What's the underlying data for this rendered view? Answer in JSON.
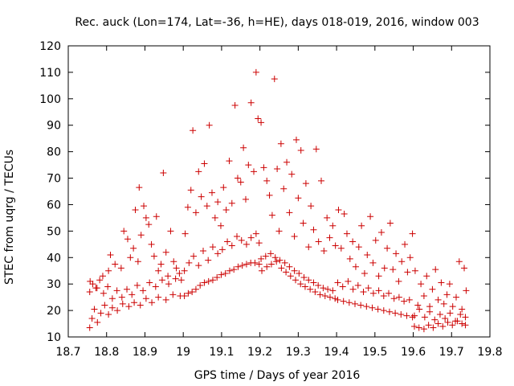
{
  "chart_data": {
    "type": "scatter",
    "title": "Rec. auck (Lon=174, Lat=-36, h=HE), days 018-019, 2016, window 003",
    "xlabel": "GPS time / Days of year 2016",
    "ylabel": "STEC from uqrg / TECUs",
    "xlim": [
      18.7,
      19.8
    ],
    "ylim": [
      10,
      120
    ],
    "xticks": [
      "18.7",
      "18.8",
      "18.9",
      "19",
      "19.1",
      "19.2",
      "19.3",
      "19.4",
      "19.5",
      "19.6",
      "19.7",
      "19.8"
    ],
    "yticks": [
      "10",
      "20",
      "30",
      "40",
      "50",
      "60",
      "70",
      "80",
      "90",
      "100",
      "110",
      "120"
    ],
    "grid": false,
    "legend": "none",
    "marker": "plus",
    "colors": {
      "marker": "#cc0000",
      "frame": "#000000"
    },
    "series": [
      {
        "points": [
          [
            18.756,
            13.5
          ],
          [
            18.762,
            17.0
          ],
          [
            18.768,
            20.5
          ],
          [
            18.776,
            15.5
          ],
          [
            18.785,
            19.0
          ],
          [
            18.795,
            22.0
          ],
          [
            18.805,
            18.5
          ],
          [
            18.815,
            21.0
          ],
          [
            18.828,
            20.0
          ],
          [
            18.842,
            22.5
          ],
          [
            18.858,
            21.5
          ],
          [
            18.872,
            23.0
          ],
          [
            18.888,
            22.0
          ],
          [
            18.903,
            24.5
          ],
          [
            18.918,
            23.0
          ],
          [
            18.935,
            25.0
          ],
          [
            18.955,
            24.0
          ],
          [
            18.973,
            26.0
          ],
          [
            18.992,
            25.5
          ],
          [
            18.756,
            27.0
          ],
          [
            18.764,
            30.0
          ],
          [
            18.772,
            28.5
          ],
          [
            18.782,
            31.5
          ],
          [
            18.792,
            26.5
          ],
          [
            18.803,
            29.0
          ],
          [
            18.815,
            24.5
          ],
          [
            18.827,
            27.5
          ],
          [
            18.84,
            25.0
          ],
          [
            18.853,
            28.0
          ],
          [
            18.866,
            26.0
          ],
          [
            18.88,
            29.5
          ],
          [
            18.895,
            27.5
          ],
          [
            18.912,
            30.5
          ],
          [
            18.928,
            29.0
          ],
          [
            18.945,
            31.5
          ],
          [
            18.962,
            30.0
          ],
          [
            18.98,
            32.0
          ],
          [
            18.995,
            31.5
          ],
          [
            18.757,
            31.0
          ],
          [
            18.775,
            28.5
          ],
          [
            18.79,
            33.0
          ],
          [
            18.805,
            35.0
          ],
          [
            18.81,
            41.0
          ],
          [
            18.822,
            37.5
          ],
          [
            18.838,
            36.0
          ],
          [
            18.845,
            50.0
          ],
          [
            18.855,
            47.0
          ],
          [
            18.862,
            40.0
          ],
          [
            18.87,
            43.5
          ],
          [
            18.875,
            58.0
          ],
          [
            18.882,
            38.5
          ],
          [
            18.885,
            66.5
          ],
          [
            18.89,
            48.5
          ],
          [
            18.897,
            59.5
          ],
          [
            18.903,
            55.0
          ],
          [
            18.91,
            52.5
          ],
          [
            18.917,
            45.0
          ],
          [
            18.924,
            40.5
          ],
          [
            18.93,
            55.5
          ],
          [
            18.935,
            35.0
          ],
          [
            18.942,
            37.5
          ],
          [
            18.948,
            72.0
          ],
          [
            18.955,
            42.0
          ],
          [
            18.96,
            33.0
          ],
          [
            18.967,
            50.0
          ],
          [
            18.975,
            38.5
          ],
          [
            18.982,
            36.0
          ],
          [
            18.99,
            34.0
          ],
          [
            19.003,
            25.5
          ],
          [
            19.013,
            26.5
          ],
          [
            19.023,
            27.0
          ],
          [
            19.033,
            28.0
          ],
          [
            19.044,
            29.5
          ],
          [
            19.055,
            30.5
          ],
          [
            19.066,
            31.0
          ],
          [
            19.077,
            31.5
          ],
          [
            19.088,
            32.5
          ],
          [
            19.099,
            33.5
          ],
          [
            19.11,
            34.0
          ],
          [
            19.121,
            35.0
          ],
          [
            19.132,
            35.5
          ],
          [
            19.143,
            36.5
          ],
          [
            19.154,
            37.0
          ],
          [
            19.165,
            37.5
          ],
          [
            19.176,
            38.0
          ],
          [
            19.187,
            38.0
          ],
          [
            19.198,
            37.5
          ],
          [
            19.003,
            35.0
          ],
          [
            19.015,
            38.0
          ],
          [
            19.027,
            40.5
          ],
          [
            19.04,
            37.0
          ],
          [
            19.052,
            42.5
          ],
          [
            19.065,
            39.0
          ],
          [
            19.077,
            44.0
          ],
          [
            19.09,
            41.5
          ],
          [
            19.102,
            43.0
          ],
          [
            19.115,
            46.0
          ],
          [
            19.127,
            44.5
          ],
          [
            19.14,
            48.0
          ],
          [
            19.152,
            46.5
          ],
          [
            19.165,
            45.0
          ],
          [
            19.177,
            47.5
          ],
          [
            19.19,
            49.0
          ],
          [
            19.198,
            45.5
          ],
          [
            19.005,
            49.0
          ],
          [
            19.012,
            59.0
          ],
          [
            19.02,
            65.5
          ],
          [
            19.025,
            88.0
          ],
          [
            19.033,
            57.0
          ],
          [
            19.04,
            72.5
          ],
          [
            19.047,
            63.0
          ],
          [
            19.055,
            75.5
          ],
          [
            19.062,
            59.5
          ],
          [
            19.068,
            90.0
          ],
          [
            19.075,
            64.5
          ],
          [
            19.083,
            55.0
          ],
          [
            19.09,
            61.0
          ],
          [
            19.098,
            52.0
          ],
          [
            19.105,
            66.5
          ],
          [
            19.112,
            58.0
          ],
          [
            19.12,
            76.5
          ],
          [
            19.127,
            60.5
          ],
          [
            19.135,
            97.5
          ],
          [
            19.142,
            70.0
          ],
          [
            19.15,
            68.5
          ],
          [
            19.157,
            81.5
          ],
          [
            19.163,
            62.0
          ],
          [
            19.17,
            75.0
          ],
          [
            19.177,
            98.5
          ],
          [
            19.184,
            72.5
          ],
          [
            19.19,
            110.0
          ],
          [
            19.195,
            92.5
          ],
          [
            19.203,
            39.5
          ],
          [
            19.215,
            40.5
          ],
          [
            19.228,
            41.5
          ],
          [
            19.24,
            40.0
          ],
          [
            19.252,
            39.0
          ],
          [
            19.265,
            38.0
          ],
          [
            19.277,
            36.5
          ],
          [
            19.29,
            35.0
          ],
          [
            19.302,
            34.0
          ],
          [
            19.315,
            32.5
          ],
          [
            19.327,
            31.5
          ],
          [
            19.34,
            30.5
          ],
          [
            19.352,
            29.5
          ],
          [
            19.365,
            28.5
          ],
          [
            19.377,
            28.0
          ],
          [
            19.39,
            27.5
          ],
          [
            19.205,
            35.0
          ],
          [
            19.218,
            36.5
          ],
          [
            19.23,
            37.5
          ],
          [
            19.243,
            38.5
          ],
          [
            19.256,
            36.0
          ],
          [
            19.268,
            34.5
          ],
          [
            19.28,
            33.0
          ],
          [
            19.293,
            31.5
          ],
          [
            19.306,
            30.0
          ],
          [
            19.318,
            29.0
          ],
          [
            19.331,
            28.0
          ],
          [
            19.344,
            27.0
          ],
          [
            19.357,
            26.0
          ],
          [
            19.37,
            25.5
          ],
          [
            19.383,
            25.0
          ],
          [
            19.396,
            24.5
          ],
          [
            19.203,
            91.0
          ],
          [
            19.21,
            74.0
          ],
          [
            19.218,
            69.0
          ],
          [
            19.225,
            63.5
          ],
          [
            19.232,
            56.0
          ],
          [
            19.238,
            107.5
          ],
          [
            19.245,
            73.5
          ],
          [
            19.25,
            50.0
          ],
          [
            19.255,
            83.0
          ],
          [
            19.262,
            66.0
          ],
          [
            19.27,
            76.0
          ],
          [
            19.277,
            57.0
          ],
          [
            19.283,
            71.5
          ],
          [
            19.29,
            48.0
          ],
          [
            19.295,
            84.5
          ],
          [
            19.3,
            62.5
          ],
          [
            19.307,
            80.5
          ],
          [
            19.313,
            53.0
          ],
          [
            19.32,
            68.0
          ],
          [
            19.327,
            44.0
          ],
          [
            19.333,
            59.5
          ],
          [
            19.34,
            50.5
          ],
          [
            19.347,
            81.0
          ],
          [
            19.353,
            46.0
          ],
          [
            19.36,
            69.0
          ],
          [
            19.367,
            42.5
          ],
          [
            19.375,
            55.0
          ],
          [
            19.382,
            47.5
          ],
          [
            19.39,
            52.0
          ],
          [
            19.397,
            44.5
          ],
          [
            19.403,
            24.0
          ],
          [
            19.418,
            23.5
          ],
          [
            19.433,
            23.0
          ],
          [
            19.448,
            22.5
          ],
          [
            19.463,
            22.0
          ],
          [
            19.478,
            21.5
          ],
          [
            19.493,
            21.0
          ],
          [
            19.508,
            20.5
          ],
          [
            19.523,
            20.0
          ],
          [
            19.538,
            19.5
          ],
          [
            19.553,
            19.0
          ],
          [
            19.568,
            18.5
          ],
          [
            19.583,
            18.0
          ],
          [
            19.598,
            17.5
          ],
          [
            19.403,
            30.5
          ],
          [
            19.416,
            29.0
          ],
          [
            19.43,
            31.0
          ],
          [
            19.443,
            28.0
          ],
          [
            19.456,
            29.5
          ],
          [
            19.47,
            27.0
          ],
          [
            19.483,
            28.5
          ],
          [
            19.496,
            26.5
          ],
          [
            19.51,
            27.5
          ],
          [
            19.523,
            25.5
          ],
          [
            19.536,
            26.5
          ],
          [
            19.55,
            24.5
          ],
          [
            19.563,
            25.0
          ],
          [
            19.576,
            23.5
          ],
          [
            19.59,
            24.0
          ],
          [
            19.405,
            58.0
          ],
          [
            19.412,
            43.5
          ],
          [
            19.42,
            56.5
          ],
          [
            19.427,
            49.0
          ],
          [
            19.435,
            39.5
          ],
          [
            19.442,
            46.0
          ],
          [
            19.45,
            36.5
          ],
          [
            19.458,
            44.0
          ],
          [
            19.465,
            52.0
          ],
          [
            19.473,
            34.0
          ],
          [
            19.48,
            41.0
          ],
          [
            19.488,
            55.5
          ],
          [
            19.495,
            38.0
          ],
          [
            19.502,
            46.5
          ],
          [
            19.51,
            33.0
          ],
          [
            19.517,
            49.5
          ],
          [
            19.525,
            36.0
          ],
          [
            19.532,
            43.5
          ],
          [
            19.54,
            53.0
          ],
          [
            19.547,
            35.5
          ],
          [
            19.555,
            41.5
          ],
          [
            19.562,
            31.0
          ],
          [
            19.57,
            38.5
          ],
          [
            19.578,
            45.0
          ],
          [
            19.585,
            34.5
          ],
          [
            19.592,
            40.0
          ],
          [
            19.598,
            49.0
          ],
          [
            19.603,
            14.0
          ],
          [
            19.615,
            13.5
          ],
          [
            19.628,
            13.0
          ],
          [
            19.64,
            14.5
          ],
          [
            19.652,
            13.5
          ],
          [
            19.665,
            15.0
          ],
          [
            19.677,
            14.0
          ],
          [
            19.69,
            15.5
          ],
          [
            19.702,
            14.5
          ],
          [
            19.715,
            16.0
          ],
          [
            19.727,
            15.0
          ],
          [
            19.736,
            14.5
          ],
          [
            19.603,
            18.0
          ],
          [
            19.616,
            20.5
          ],
          [
            19.63,
            17.5
          ],
          [
            19.643,
            19.5
          ],
          [
            19.656,
            16.5
          ],
          [
            19.67,
            18.5
          ],
          [
            19.683,
            17.0
          ],
          [
            19.696,
            19.0
          ],
          [
            19.71,
            16.0
          ],
          [
            19.723,
            18.5
          ],
          [
            19.736,
            17.5
          ],
          [
            19.605,
            35.0
          ],
          [
            19.612,
            22.0
          ],
          [
            19.62,
            30.0
          ],
          [
            19.628,
            25.5
          ],
          [
            19.635,
            33.0
          ],
          [
            19.643,
            21.5
          ],
          [
            19.65,
            28.0
          ],
          [
            19.658,
            35.5
          ],
          [
            19.665,
            24.0
          ],
          [
            19.673,
            30.5
          ],
          [
            19.68,
            22.5
          ],
          [
            19.688,
            26.0
          ],
          [
            19.695,
            30.0
          ],
          [
            19.703,
            21.5
          ],
          [
            19.712,
            25.0
          ],
          [
            19.72,
            38.5
          ],
          [
            19.727,
            20.5
          ],
          [
            19.733,
            36.0
          ],
          [
            19.738,
            27.5
          ]
        ]
      }
    ]
  }
}
